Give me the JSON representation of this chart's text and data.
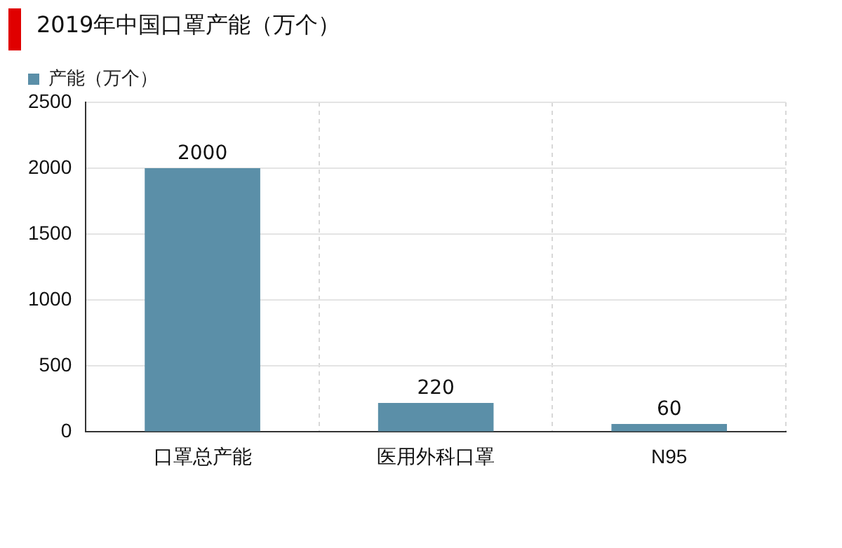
{
  "chart_data": {
    "type": "bar",
    "title": "2019年中国口罩产能（万个）",
    "categories": [
      "口罩总产能",
      "医用外科口罩",
      "N95"
    ],
    "series": [
      {
        "name": "产能（万个）",
        "color": "#5b8fa8",
        "values": [
          2000,
          220,
          60
        ]
      }
    ],
    "ylim": [
      0,
      2500
    ],
    "yticks": [
      0,
      500,
      1000,
      1500,
      2000,
      2500
    ],
    "grid": true,
    "legend": "top left",
    "data_labels": true
  }
}
